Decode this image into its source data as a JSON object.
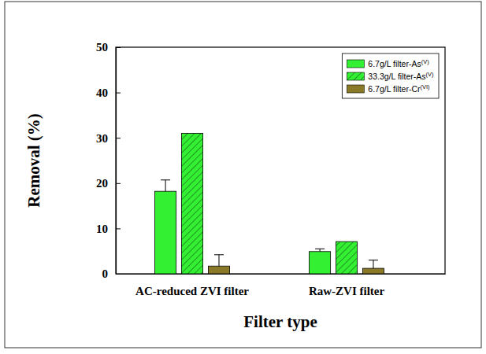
{
  "chart_data": {
    "type": "bar",
    "x_label": "Filter type",
    "y_label": "Removal (%)",
    "categories": [
      "AC-reduced ZVI filter",
      "Raw-ZVI filter"
    ],
    "series": [
      {
        "name": "6.7g/L filter-As(V)",
        "color": "#33f033",
        "values": [
          18.2,
          4.9
        ],
        "errors": [
          2.5,
          0.6
        ]
      },
      {
        "name": "33.3g/L filter-As(V)",
        "color": "#33f033",
        "values": [
          31,
          7.1
        ]
      },
      {
        "name": "6.7g/L filter-Cr(VI)",
        "color": "#8a7a28",
        "values": [
          1.7,
          1.2
        ],
        "errors": [
          2.5,
          1.8
        ]
      }
    ],
    "ylim": [
      0,
      50
    ],
    "yticks": [
      0,
      10,
      20,
      30,
      40,
      50
    ],
    "grid": false,
    "legend": "upper right"
  }
}
